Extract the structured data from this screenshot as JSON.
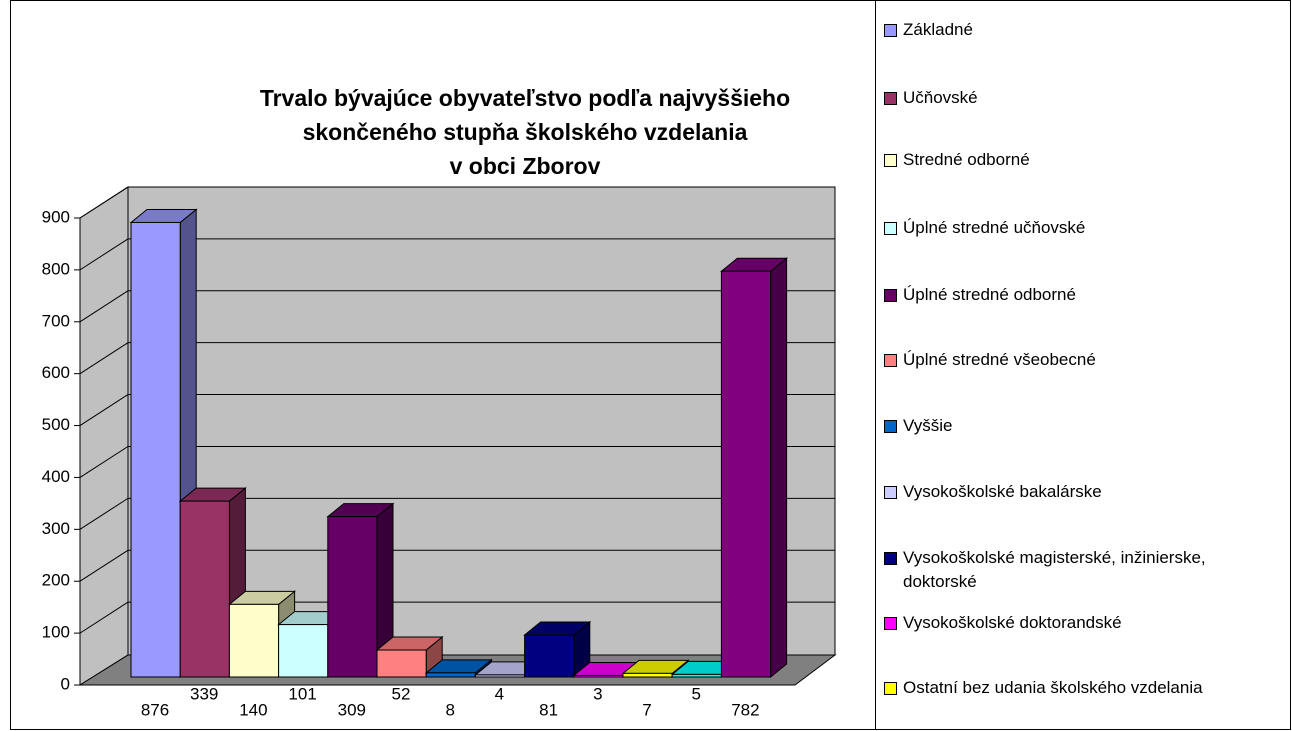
{
  "chart_data": {
    "type": "bar3d",
    "title": [
      "Trvalo bývajúce obyvateľstvo podľa najvyššieho",
      "skončeného stupňa školského vzdelania",
      "v obci Zborov"
    ],
    "categories": [
      "Základné",
      "Učňovské",
      "Stredné odborné",
      "Úplné stredné učňovské",
      "Úplné stredné odborné",
      "Úplné stredné všeobecné",
      "Vyššie",
      "Vysokoškolské bakalárske",
      "Vysokoškolské magisterské, inžinierske, doktorské",
      "Vysokoškolské doktorandské",
      "Ostatní bez udania školského vzdelania",
      null,
      null
    ],
    "values": [
      876,
      339,
      140,
      101,
      309,
      52,
      8,
      4,
      81,
      3,
      7,
      5,
      782
    ],
    "colors": [
      "#9999ff",
      "#993366",
      "#ffffcc",
      "#ccffff",
      "#660066",
      "#ff8080",
      "#0066cc",
      "#ccccff",
      "#000080",
      "#ff00ff",
      "#ffff00",
      "#00ffff",
      "#800080"
    ],
    "ylim": [
      0,
      900
    ],
    "yticks": [
      0,
      100,
      200,
      300,
      400,
      500,
      600,
      700,
      800,
      900
    ],
    "grid": true
  }
}
